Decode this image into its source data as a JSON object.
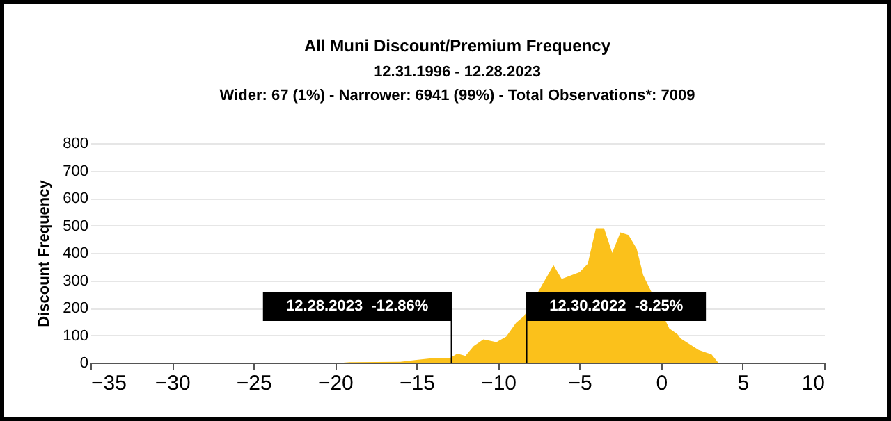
{
  "chart_data": {
    "type": "area",
    "title": "All Muni Discount/Premium Frequency",
    "subtitle": "12.31.1996 - 12.28.2023",
    "annotations": [
      "Wider: 67 (1%) - Narrower: 6941 (99%) - Total Observations*: 7009"
    ],
    "ylabel": "Discount Frequency",
    "x": [
      -19.5,
      -19.1,
      -16,
      -15,
      -14.2,
      -13,
      -12.5,
      -12,
      -11.5,
      -10.9,
      -10.1,
      -9.5,
      -8.9,
      -8.4,
      -7.6,
      -7.1,
      -6.6,
      -6.1,
      -5.0,
      -4.5,
      -4.0,
      -3.5,
      -3.0,
      -2.5,
      -2.0,
      -1.5,
      -1.1,
      -0.8,
      0,
      0.5,
      1.0,
      1.2,
      2.3,
      3.1,
      3.5
    ],
    "series": [
      {
        "color": "#fbc11b",
        "values": [
          0,
          2,
          3,
          10,
          15,
          15,
          33,
          25,
          60,
          85,
          75,
          95,
          145,
          170,
          null,
          null,
          355,
          305,
          330,
          360,
          490,
          490,
          400,
          475,
          465,
          415,
          319,
          null,
          null,
          125,
          104,
          88,
          46,
          30,
          0
        ]
      }
    ],
    "xlim": [
      -35,
      10
    ],
    "xticks": [
      -35,
      -30,
      -25,
      -20,
      -15,
      -10,
      -5,
      0,
      5,
      10
    ],
    "ylim": [
      0,
      800
    ],
    "yticks": [
      0,
      100,
      200,
      300,
      400,
      500,
      600,
      700,
      800
    ],
    "grid": "y",
    "ref_lines": [
      {
        "axis": "x",
        "value": -12.86,
        "label": "12.28.2023  -12.86%"
      },
      {
        "axis": "x",
        "value": -8.25,
        "label": "12.30.2022  -8.25%"
      }
    ]
  }
}
